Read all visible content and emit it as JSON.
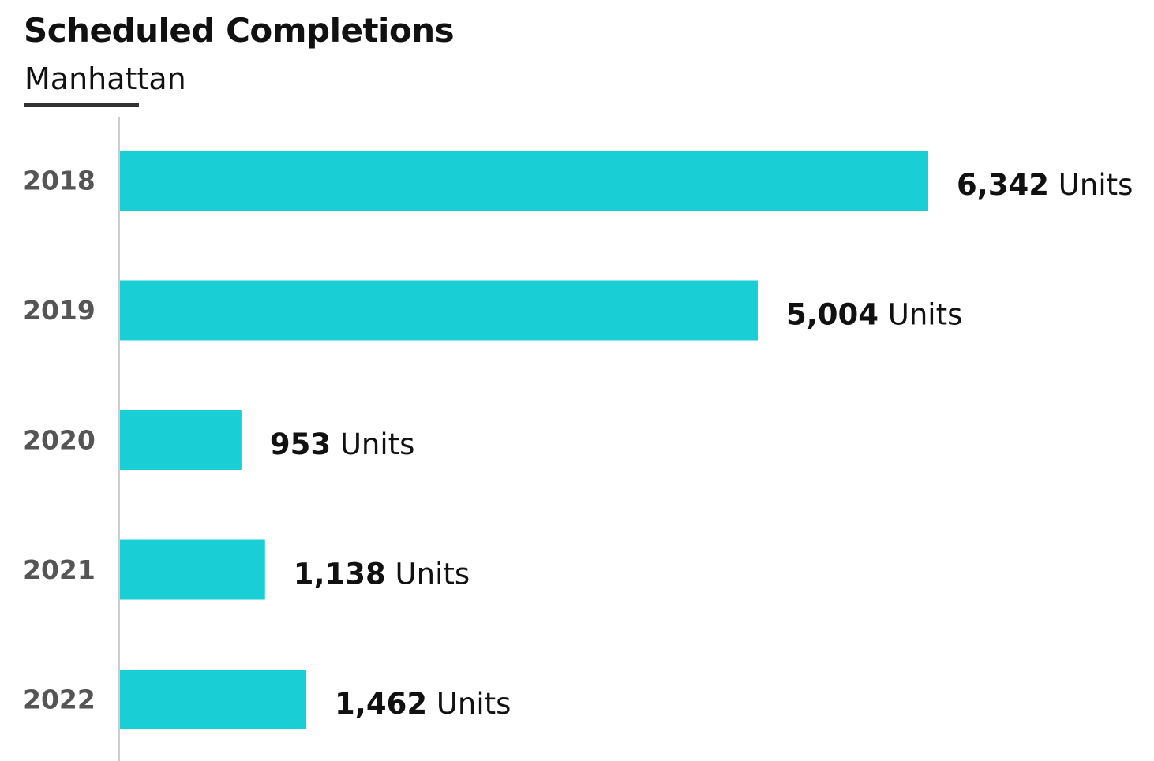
{
  "header": {
    "title": "Scheduled Completions",
    "subtitle": "Manhattan"
  },
  "colors": {
    "bar": "#1ACED6",
    "axis": "#cccccc",
    "title_rule": "#333333",
    "category_label": "#555555"
  },
  "chart_data": {
    "type": "bar",
    "orientation": "horizontal",
    "title": "Scheduled Completions",
    "subtitle": "Manhattan",
    "categories": [
      "2018",
      "2019",
      "2020",
      "2021",
      "2022"
    ],
    "values": [
      6342,
      5004,
      953,
      1138,
      1462
    ],
    "data_labels": [
      "6,342",
      "5,004",
      "953",
      "1,138",
      "1,462"
    ],
    "unit_label": "Units",
    "xlim": [
      0,
      6342
    ],
    "grid": false,
    "legend": "none"
  }
}
